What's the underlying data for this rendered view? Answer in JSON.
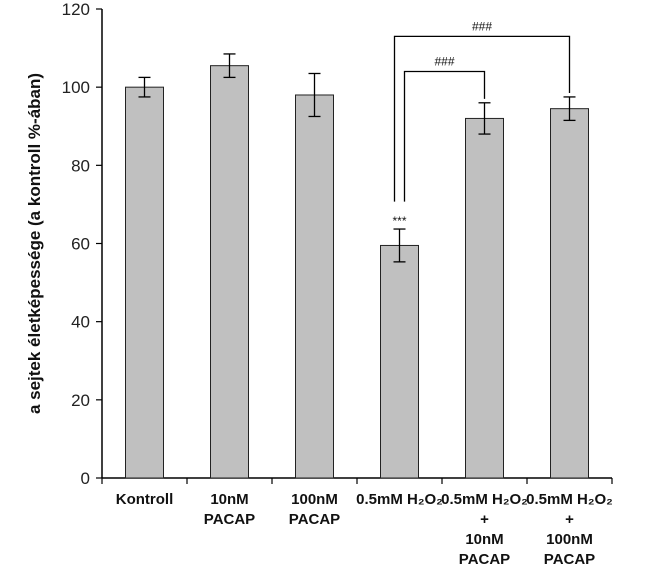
{
  "chart_data": {
    "type": "bar",
    "ylabel": "a sejtek életképessége (a kontroll %-ában)",
    "ylim": [
      0,
      120
    ],
    "yticks": [
      0,
      20,
      40,
      60,
      80,
      100,
      120
    ],
    "grid": false,
    "categories": [
      [
        "Kontroll"
      ],
      [
        "10nM",
        "PACAP"
      ],
      [
        "100nM",
        "PACAP"
      ],
      [
        "0.5mM H₂O₂"
      ],
      [
        "0.5mM H₂O₂",
        "+",
        "10nM",
        "PACAP"
      ],
      [
        "0.5mM H₂O₂",
        "+",
        "100nM",
        "PACAP"
      ]
    ],
    "values": [
      100,
      105.5,
      98,
      59.5,
      92,
      94.5
    ],
    "errors": [
      2.5,
      3,
      5.5,
      4.2,
      4,
      3
    ],
    "bar_color": "#c0c0c0",
    "annotations": [
      {
        "bar": 3,
        "text": "***"
      }
    ],
    "brackets": [
      {
        "from": 3,
        "to": 5,
        "level": 113,
        "text": "###"
      },
      {
        "from": 3,
        "to": 4,
        "level": 104,
        "text": "###"
      }
    ]
  }
}
